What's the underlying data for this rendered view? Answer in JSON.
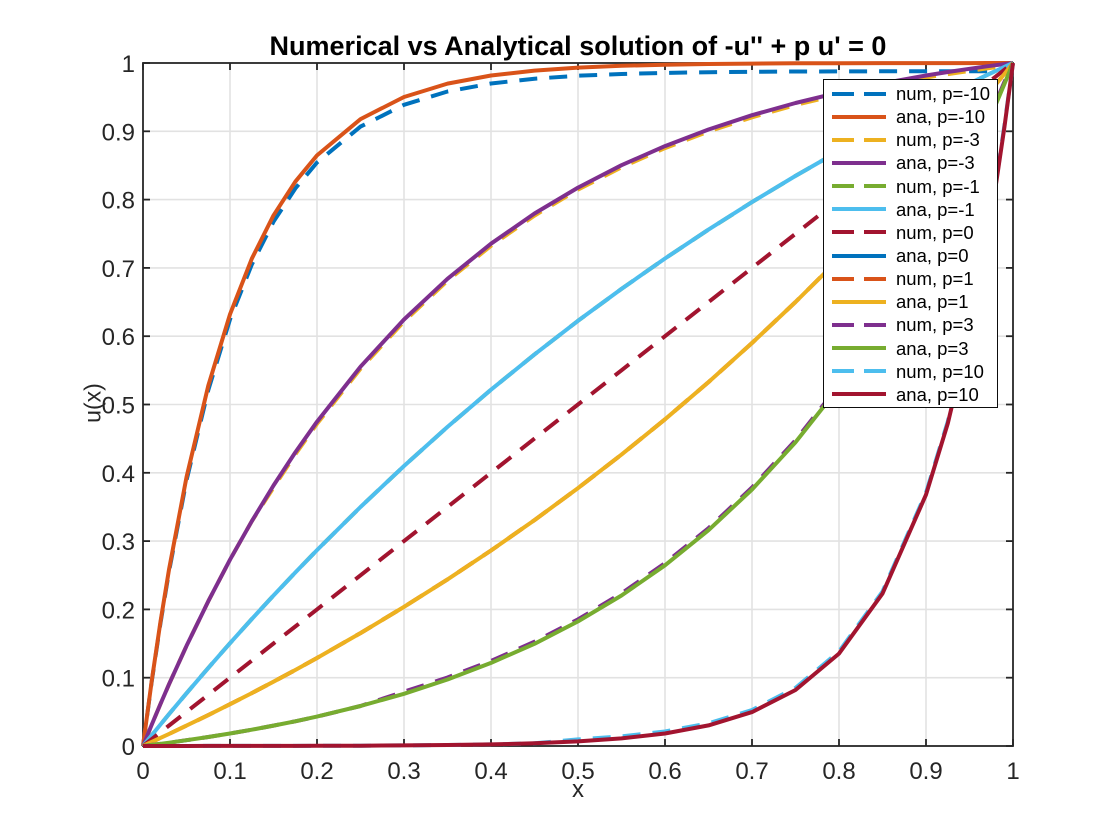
{
  "figure": {
    "background": "#ffffff",
    "kind": "MATLAB-style line plot"
  },
  "chart_data": {
    "type": "line",
    "title": "Numerical vs Analytical solution of -u'' + p u' = 0",
    "xlabel": "x",
    "ylabel": "u(x)",
    "xlim": [
      0,
      1
    ],
    "ylim": [
      0,
      1
    ],
    "grid": true,
    "grid_color": "#e2e2e2",
    "axis_color": "#262626",
    "tick_label_color": "#262626",
    "legend_position": "northeast",
    "xticks": [
      0,
      0.1,
      0.2,
      0.3,
      0.4,
      0.5,
      0.6,
      0.7,
      0.8,
      0.9,
      1
    ],
    "xtick_labels": [
      "0",
      "0.1",
      "0.2",
      "0.3",
      "0.4",
      "0.5",
      "0.6",
      "0.7",
      "0.8",
      "0.9",
      "1"
    ],
    "yticks": [
      0,
      0.1,
      0.2,
      0.3,
      0.4,
      0.5,
      0.6,
      0.7,
      0.8,
      0.9,
      1
    ],
    "ytick_labels": [
      "0",
      "0.1",
      "0.2",
      "0.3",
      "0.4",
      "0.5",
      "0.6",
      "0.7",
      "0.8",
      "0.9",
      "1"
    ],
    "x": [
      0,
      0.01,
      0.02,
      0.03,
      0.05,
      0.075,
      0.1,
      0.125,
      0.15,
      0.175,
      0.2,
      0.25,
      0.3,
      0.35,
      0.4,
      0.45,
      0.5,
      0.55,
      0.6,
      0.65,
      0.7,
      0.75,
      0.8,
      0.85,
      0.9,
      0.925,
      0.95,
      0.97,
      0.98,
      0.99,
      1
    ],
    "series": [
      {
        "name": "num, p=-10",
        "role": "numerical",
        "p": -10,
        "style": "dashed",
        "color": "#0072BD",
        "visible": true,
        "y": [
          0,
          0.0941,
          0.1791,
          0.2561,
          0.3888,
          0.5213,
          0.6246,
          0.705,
          0.7676,
          0.8163,
          0.8543,
          0.9069,
          0.9388,
          0.9582,
          0.97,
          0.977,
          0.9814,
          0.9839,
          0.9855,
          0.9865,
          0.9871,
          0.9875,
          0.9877,
          0.9878,
          0.9879,
          0.9879,
          0.9879,
          0.988,
          0.988,
          0.988,
          1
        ]
      },
      {
        "name": "ana, p=-10",
        "role": "analytical",
        "p": -10,
        "style": "solid",
        "color": "#D95319",
        "visible": true,
        "y": [
          0,
          0.0952,
          0.1813,
          0.2592,
          0.3935,
          0.5276,
          0.6321,
          0.7135,
          0.7769,
          0.8262,
          0.8647,
          0.9179,
          0.9502,
          0.9698,
          0.9817,
          0.9889,
          0.9933,
          0.9959,
          0.9975,
          0.9985,
          0.9991,
          0.9995,
          0.9997,
          0.9998,
          0.9999,
          0.9999,
          0.9999,
          1,
          1,
          1,
          1
        ]
      },
      {
        "name": "num, p=-3",
        "role": "numerical",
        "p": -3,
        "style": "dashed",
        "color": "#EDB120",
        "visible": true,
        "y": [
          0,
          0.0311,
          0.0613,
          0.0906,
          0.1466,
          0.212,
          0.2728,
          0.3291,
          0.3784,
          0.4269,
          0.4718,
          0.5523,
          0.6215,
          0.6811,
          0.7324,
          0.7766,
          0.8146,
          0.8473,
          0.8754,
          0.8997,
          0.9205,
          0.9385,
          0.9539,
          0.9672,
          0.9787,
          0.9838,
          0.9885,
          0.9921,
          0.9938,
          0.9954,
          1
        ]
      },
      {
        "name": "ana, p=-3",
        "role": "analytical",
        "p": -3,
        "style": "solid",
        "color": "#7E2F8E",
        "visible": true,
        "y": [
          0,
          0.0311,
          0.0613,
          0.0906,
          0.1466,
          0.212,
          0.2728,
          0.3291,
          0.3814,
          0.4299,
          0.4748,
          0.5553,
          0.6245,
          0.6841,
          0.7354,
          0.7796,
          0.8176,
          0.8503,
          0.8784,
          0.9027,
          0.9235,
          0.9415,
          0.9569,
          0.9702,
          0.9817,
          0.9868,
          0.9915,
          0.9951,
          0.9968,
          0.9984,
          1
        ]
      },
      {
        "name": "num, p=-1",
        "role": "numerical",
        "p": -1,
        "style": "dashed",
        "color": "#77AC30",
        "visible": true,
        "y": [
          0,
          0.0157,
          0.0313,
          0.0468,
          0.0772,
          0.1143,
          0.1505,
          0.1859,
          0.2204,
          0.254,
          0.2868,
          0.3499,
          0.41,
          0.4672,
          0.5216,
          0.5733,
          0.6225,
          0.6693,
          0.7138,
          0.7561,
          0.7964,
          0.8347,
          0.8712,
          0.9059,
          0.9388,
          0.9546,
          0.9702,
          0.9823,
          0.9883,
          0.9942,
          1
        ]
      },
      {
        "name": "ana, p=-1",
        "role": "analytical",
        "p": -1,
        "style": "solid",
        "color": "#4DBEEE",
        "visible": true,
        "y": [
          0,
          0.0157,
          0.0313,
          0.0468,
          0.0772,
          0.1143,
          0.1505,
          0.1859,
          0.2204,
          0.254,
          0.2868,
          0.3499,
          0.41,
          0.4672,
          0.5216,
          0.5733,
          0.6225,
          0.6693,
          0.7138,
          0.7561,
          0.7964,
          0.8347,
          0.8712,
          0.9059,
          0.9388,
          0.9546,
          0.9702,
          0.9823,
          0.9883,
          0.9942,
          1
        ]
      },
      {
        "name": "num, p=0",
        "role": "numerical",
        "p": 0,
        "style": "dashed",
        "color": "#A2142F",
        "visible": true,
        "y": [
          0,
          0.01,
          0.02,
          0.03,
          0.05,
          0.075,
          0.1,
          0.125,
          0.15,
          0.175,
          0.2,
          0.25,
          0.3,
          0.35,
          0.4,
          0.45,
          0.5,
          0.55,
          0.6,
          0.65,
          0.7,
          0.75,
          0.8,
          0.85,
          0.9,
          0.925,
          0.95,
          0.97,
          0.98,
          0.99,
          1
        ]
      },
      {
        "name": "ana, p=0",
        "role": "analytical",
        "p": 0,
        "style": "solid",
        "color": "#0072BD",
        "visible": false,
        "y": []
      },
      {
        "name": "num, p=1",
        "role": "numerical",
        "p": 1,
        "style": "dashed",
        "color": "#D95319",
        "visible": true,
        "y": [
          0,
          0.0058,
          0.0118,
          0.0177,
          0.0298,
          0.0453,
          0.0612,
          0.0775,
          0.0942,
          0.1113,
          0.1288,
          0.1653,
          0.2036,
          0.2439,
          0.2862,
          0.3307,
          0.3776,
          0.4267,
          0.4784,
          0.5328,
          0.59,
          0.6501,
          0.7132,
          0.7796,
          0.8495,
          0.8858,
          0.9228,
          0.9531,
          0.9684,
          0.9838,
          1
        ]
      },
      {
        "name": "ana, p=1",
        "role": "analytical",
        "p": 1,
        "style": "solid",
        "color": "#EDB120",
        "visible": true,
        "y": [
          0,
          0.0058,
          0.0118,
          0.0177,
          0.0298,
          0.0453,
          0.0612,
          0.0775,
          0.0942,
          0.1113,
          0.1288,
          0.1653,
          0.2036,
          0.2439,
          0.2862,
          0.3307,
          0.3776,
          0.4267,
          0.4784,
          0.5328,
          0.59,
          0.6501,
          0.7132,
          0.7796,
          0.8495,
          0.8858,
          0.9228,
          0.9531,
          0.9684,
          0.9838,
          1
        ]
      },
      {
        "name": "num, p=3",
        "role": "numerical",
        "p": 3,
        "style": "dashed",
        "color": "#7E2F8E",
        "visible": true,
        "y": [
          0,
          0.0016,
          0.0032,
          0.0049,
          0.0085,
          0.0132,
          0.0183,
          0.0238,
          0.0298,
          0.0362,
          0.0431,
          0.0585,
          0.0795,
          0.1003,
          0.1246,
          0.1527,
          0.1854,
          0.2234,
          0.2676,
          0.3189,
          0.3785,
          0.4477,
          0.5282,
          0.6216,
          0.7302,
          0.7912,
          0.8564,
          0.9124,
          0.9417,
          0.9719,
          1
        ]
      },
      {
        "name": "ana, p=3",
        "role": "analytical",
        "p": 3,
        "style": "solid",
        "color": "#77AC30",
        "visible": true,
        "y": [
          0,
          0.0016,
          0.0032,
          0.0049,
          0.0085,
          0.0132,
          0.0183,
          0.0238,
          0.0298,
          0.0362,
          0.0431,
          0.0585,
          0.0765,
          0.0973,
          0.1216,
          0.1497,
          0.1824,
          0.2204,
          0.2646,
          0.3159,
          0.3755,
          0.4447,
          0.5252,
          0.6186,
          0.7272,
          0.7882,
          0.8534,
          0.9094,
          0.9387,
          0.9689,
          1
        ]
      },
      {
        "name": "num, p=10",
        "role": "numerical",
        "p": 10,
        "style": "dashed",
        "color": "#4DBEEE",
        "visible": true,
        "y": [
          0,
          0,
          0,
          0,
          0,
          0.0001,
          0.0001,
          0.0001,
          0.0002,
          0.0002,
          0.0003,
          0.0005,
          0.0009,
          0.0015,
          0.0024,
          0.004,
          0.0097,
          0.0141,
          0.0213,
          0.0332,
          0.0527,
          0.085,
          0.1383,
          0.2261,
          0.3709,
          0.4753,
          0.6095,
          0.7438,
          0.8217,
          0.9078,
          1
        ]
      },
      {
        "name": "ana, p=10",
        "role": "analytical",
        "p": 10,
        "style": "solid",
        "color": "#A2142F",
        "visible": true,
        "y": [
          0,
          0,
          0,
          0,
          0,
          0.0001,
          0.0001,
          0.0001,
          0.0002,
          0.0002,
          0.0003,
          0.0005,
          0.0009,
          0.0015,
          0.0024,
          0.004,
          0.0067,
          0.0111,
          0.0183,
          0.0302,
          0.0497,
          0.082,
          0.1353,
          0.2231,
          0.3679,
          0.4723,
          0.6065,
          0.7408,
          0.8187,
          0.9048,
          1
        ]
      }
    ]
  }
}
